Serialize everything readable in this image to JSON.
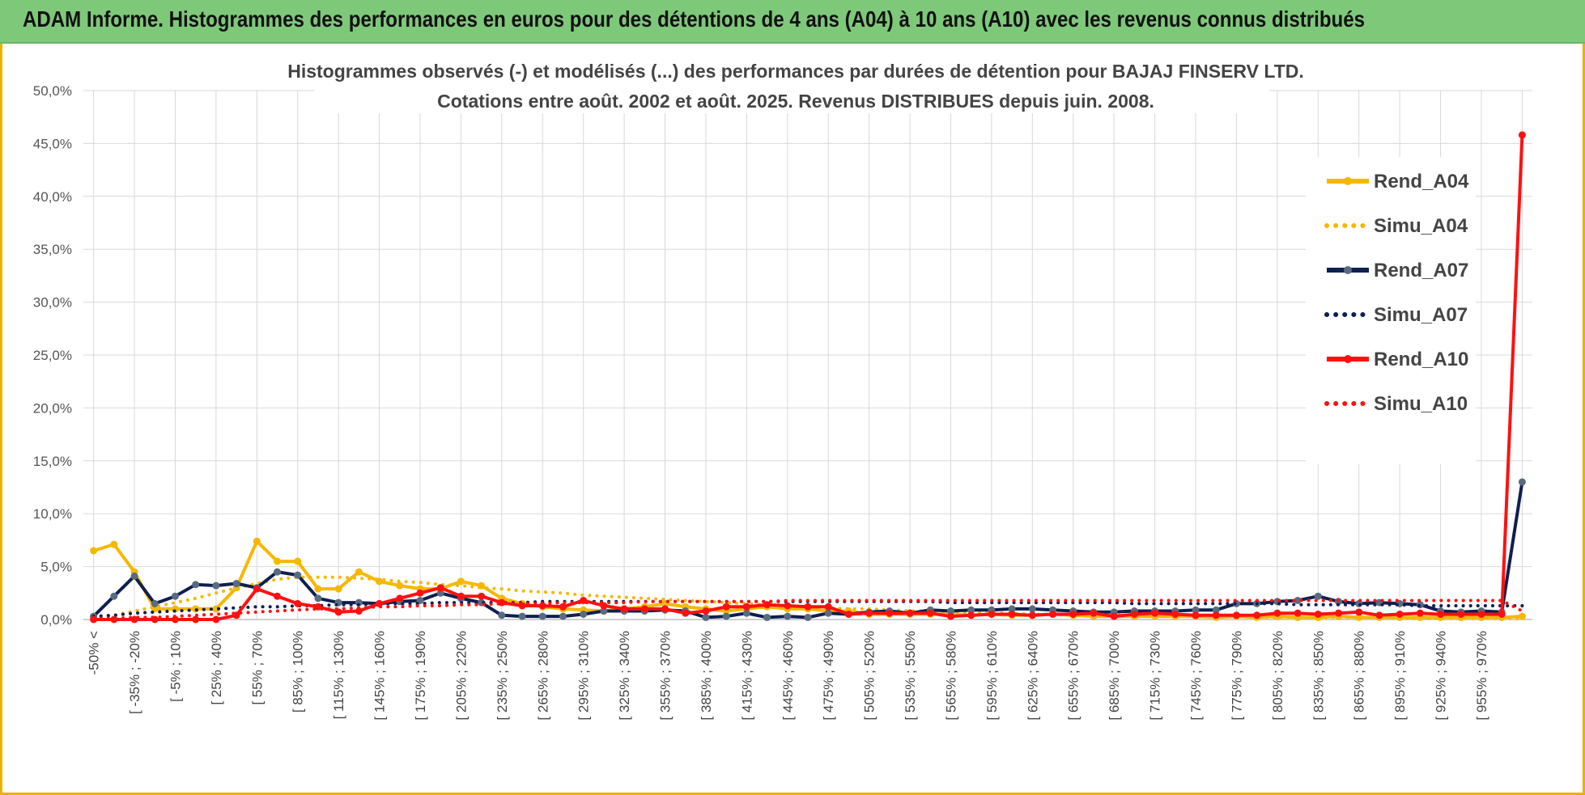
{
  "banner": {
    "title": "ADAM Informe. Histogrammes des performances en euros pour des détentions de 4 ans (A04) à 10 ans (A10) avec les revenus connus distribués"
  },
  "chart_data": {
    "type": "line",
    "title": "Histogrammes observés (-) et modélisés (...) des performances par durées de détention pour BAJAJ FINSERV LTD.",
    "subtitle": "Cotations entre août. 2002 et août. 2025. Revenus DISTRIBUES depuis juin. 2008.",
    "xlabel": "",
    "ylabel": "",
    "ylim": [
      0,
      50
    ],
    "yticks": [
      "0,0%",
      "5,0%",
      "10,0%",
      "15,0%",
      "20,0%",
      "25,0%",
      "30,0%",
      "35,0%",
      "40,0%",
      "45,0%",
      "50,0%"
    ],
    "grid": true,
    "legend_position": "right",
    "x_tick_labels": [
      "-50% <",
      "[ -35% ; -20%",
      "[ -5% ; 10%",
      "[ 25% ; 40%",
      "[ 55% ; 70%",
      "[ 85% ; 100%",
      "[ 115% ; 130%",
      "[ 145% ; 160%",
      "[ 175% ; 190%",
      "[ 205% ; 220%",
      "[ 235% ; 250%",
      "[ 265% ; 280%",
      "[ 295% ; 310%",
      "[ 325% ; 340%",
      "[ 355% ; 370%",
      "[ 385% ; 400%",
      "[ 415% ; 430%",
      "[ 445% ; 460%",
      "[ 475% ; 490%",
      "[ 505% ; 520%",
      "[ 535% ; 550%",
      "[ 565% ; 580%",
      "[ 595% ; 610%",
      "[ 625% ; 640%",
      "[ 655% ; 670%",
      "[ 685% ; 700%",
      "[ 715% ; 730%",
      "[ 745% ; 760%",
      "[ 775% ; 790%",
      "[ 805% ; 820%",
      "[ 835% ; 850%",
      "[ 865% ; 880%",
      "[ 895% ; 910%",
      "[ 925% ; 940%",
      "[ 955% ; 970%"
    ],
    "categories_count": 71,
    "series": [
      {
        "name": "Rend_A04",
        "style": "solid",
        "color": "#f5b800",
        "values": [
          6.5,
          7.1,
          4.5,
          1.0,
          1.0,
          1.0,
          1.0,
          3.0,
          7.4,
          5.5,
          5.5,
          2.9,
          2.9,
          4.5,
          3.6,
          3.2,
          2.9,
          2.9,
          3.6,
          3.2,
          2.0,
          1.5,
          1.2,
          1.0,
          0.9,
          0.8,
          1.0,
          1.2,
          1.5,
          1.2,
          1.0,
          0.8,
          1.0,
          1.2,
          1.0,
          1.0,
          0.8,
          0.8,
          0.5,
          0.5,
          0.5,
          0.5,
          0.5,
          0.4,
          0.5,
          0.4,
          0.4,
          0.5,
          0.4,
          0.3,
          0.3,
          0.3,
          0.3,
          0.3,
          0.3,
          0.2,
          0.3,
          0.2,
          0.3,
          0.2,
          0.2,
          0.3,
          0.2,
          0.2,
          0.2,
          0.2,
          0.2,
          0.2,
          0.2,
          0.2,
          0.3
        ]
      },
      {
        "name": "Simu_A04",
        "style": "dotted",
        "color": "#f5b800",
        "values": [
          0.2,
          0.4,
          0.8,
          1.2,
          1.6,
          2.0,
          2.5,
          3.0,
          3.4,
          3.8,
          4.0,
          4.0,
          4.0,
          3.9,
          3.8,
          3.6,
          3.5,
          3.3,
          3.2,
          3.0,
          2.9,
          2.7,
          2.6,
          2.5,
          2.3,
          2.2,
          2.1,
          2.0,
          1.9,
          1.8,
          1.7,
          1.6,
          1.5,
          1.4,
          1.3,
          1.2,
          1.1,
          1.0,
          1.0,
          0.9,
          0.8,
          0.8,
          0.7,
          0.7,
          0.6,
          0.6,
          0.5,
          0.5,
          0.5,
          0.4,
          0.4,
          0.4,
          0.3,
          0.3,
          0.3,
          0.3,
          0.3,
          0.2,
          0.2,
          0.2,
          0.2,
          0.2,
          0.2,
          0.2,
          0.1,
          0.1,
          0.1,
          0.1,
          0.1,
          0.1,
          0.1
        ]
      },
      {
        "name": "Rend_A07",
        "style": "solid",
        "color": "#0f1f4f",
        "values": [
          0.3,
          2.2,
          4.1,
          1.5,
          2.2,
          3.3,
          3.2,
          3.4,
          3.0,
          4.5,
          4.2,
          2.0,
          1.6,
          1.6,
          1.5,
          1.7,
          1.8,
          2.5,
          2.0,
          1.6,
          0.4,
          0.3,
          0.3,
          0.3,
          0.5,
          0.8,
          0.8,
          0.8,
          0.9,
          0.8,
          0.2,
          0.3,
          0.6,
          0.2,
          0.3,
          0.2,
          0.6,
          0.5,
          0.7,
          0.8,
          0.6,
          0.9,
          0.8,
          0.9,
          0.9,
          1.0,
          1.0,
          0.9,
          0.8,
          0.7,
          0.7,
          0.8,
          0.8,
          0.8,
          0.9,
          0.9,
          1.5,
          1.5,
          1.7,
          1.8,
          2.2,
          1.7,
          1.5,
          1.6,
          1.5,
          1.4,
          0.8,
          0.7,
          0.8,
          0.7,
          13.0
        ]
      },
      {
        "name": "Simu_A07",
        "style": "dotted",
        "color": "#0f1f4f",
        "values": [
          0.3,
          0.4,
          0.6,
          0.7,
          0.8,
          0.9,
          1.0,
          1.1,
          1.2,
          1.2,
          1.3,
          1.3,
          1.4,
          1.4,
          1.5,
          1.5,
          1.5,
          1.6,
          1.6,
          1.6,
          1.6,
          1.6,
          1.7,
          1.7,
          1.7,
          1.7,
          1.7,
          1.7,
          1.7,
          1.7,
          1.7,
          1.7,
          1.7,
          1.7,
          1.7,
          1.7,
          1.7,
          1.7,
          1.7,
          1.7,
          1.7,
          1.7,
          1.6,
          1.6,
          1.6,
          1.6,
          1.6,
          1.6,
          1.6,
          1.6,
          1.6,
          1.5,
          1.5,
          1.5,
          1.5,
          1.5,
          1.5,
          1.5,
          1.5,
          1.4,
          1.4,
          1.4,
          1.4,
          1.4,
          1.4,
          1.3,
          1.3,
          1.3,
          1.3,
          1.3,
          1.3
        ]
      },
      {
        "name": "Rend_A10",
        "style": "solid",
        "color": "#ff1010",
        "values": [
          0.0,
          0.0,
          0.0,
          0.0,
          0.0,
          0.0,
          0.0,
          0.4,
          2.9,
          2.2,
          1.5,
          1.2,
          0.7,
          0.8,
          1.5,
          2.0,
          2.5,
          3.0,
          2.2,
          2.2,
          1.6,
          1.3,
          1.3,
          1.2,
          1.8,
          1.3,
          1.0,
          1.0,
          1.0,
          0.6,
          0.8,
          1.2,
          1.2,
          1.4,
          1.3,
          1.2,
          1.2,
          0.5,
          0.6,
          0.6,
          0.6,
          0.6,
          0.3,
          0.4,
          0.5,
          0.5,
          0.4,
          0.5,
          0.5,
          0.6,
          0.3,
          0.5,
          0.6,
          0.5,
          0.4,
          0.4,
          0.4,
          0.4,
          0.6,
          0.6,
          0.5,
          0.6,
          0.7,
          0.4,
          0.5,
          0.6,
          0.5,
          0.5,
          0.5,
          0.5,
          45.8
        ]
      },
      {
        "name": "Simu_A10",
        "style": "dotted",
        "color": "#ff1010",
        "values": [
          0.1,
          0.1,
          0.2,
          0.2,
          0.3,
          0.4,
          0.5,
          0.6,
          0.7,
          0.8,
          0.9,
          1.0,
          1.0,
          1.1,
          1.2,
          1.2,
          1.3,
          1.3,
          1.4,
          1.4,
          1.5,
          1.5,
          1.5,
          1.6,
          1.6,
          1.6,
          1.6,
          1.7,
          1.7,
          1.7,
          1.7,
          1.7,
          1.7,
          1.7,
          1.8,
          1.8,
          1.8,
          1.8,
          1.8,
          1.8,
          1.8,
          1.8,
          1.8,
          1.8,
          1.8,
          1.8,
          1.8,
          1.8,
          1.8,
          1.8,
          1.8,
          1.8,
          1.8,
          1.8,
          1.8,
          1.8,
          1.8,
          1.8,
          1.8,
          1.8,
          1.8,
          1.8,
          1.8,
          1.8,
          1.8,
          1.8,
          1.8,
          1.8,
          1.8,
          1.8,
          0.8
        ]
      }
    ]
  }
}
